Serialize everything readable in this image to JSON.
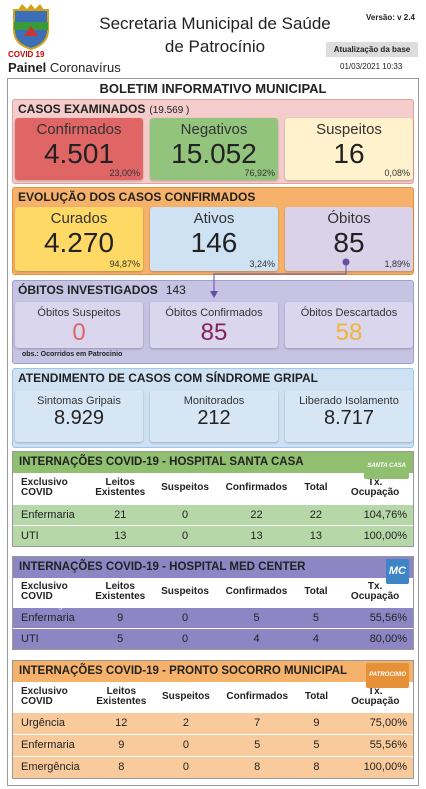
{
  "header": {
    "logo_label": "COVID 19",
    "title_line1": "Secretaria Municipal de Saúde",
    "title_line2": "de Patrocínio",
    "version": "Versão: v 2.4",
    "update_label": "Atualização da base",
    "update_date": "01/03/2021 10:33",
    "panel_bold": "Painel",
    "panel_rest": "Coronavírus"
  },
  "bulletin_title": "BOLETIM INFORMATIVO MUNICIPAL",
  "examined": {
    "title": "CASOS EXAMINADOS",
    "total": "(19.569  )",
    "cards": [
      {
        "label": "Confirmados",
        "value": "4.501",
        "percent": "23,00%"
      },
      {
        "label": "Negativos",
        "value": "15.052",
        "percent": "76,92%"
      },
      {
        "label": "Suspeitos",
        "value": "16",
        "percent": "0,08%"
      }
    ]
  },
  "evolution": {
    "title": "EVOLUÇÃO DOS CASOS CONFIRMADOS",
    "cards": [
      {
        "label": "Curados",
        "value": "4.270",
        "percent": "94,87%"
      },
      {
        "label": "Ativos",
        "value": "146",
        "percent": "3,24%"
      },
      {
        "label": "Óbitos",
        "value": "85",
        "percent": "1,89%"
      }
    ]
  },
  "deaths_investigated": {
    "title": "ÓBITOS INVESTIGADOS",
    "total": "143",
    "cards": [
      {
        "label": "Óbitos Suspeitos",
        "value": "0"
      },
      {
        "label": "Óbitos Confirmados",
        "value": "85"
      },
      {
        "label": "Óbitos Descartados",
        "value": "58"
      }
    ],
    "note": "obs.: Ocorridos em Patrocinio"
  },
  "flu_syndrome": {
    "title": "ATENDIMENTO DE CASOS COM SÍNDROME GRIPAL",
    "cards": [
      {
        "label": "Sintomas Gripais",
        "value": "8.929"
      },
      {
        "label": "Monitorados",
        "value": "212"
      },
      {
        "label": "Liberado Isolamento",
        "value": "8.717"
      }
    ]
  },
  "hospitals": [
    {
      "title": "INTERNAÇÕES COVID-19 - HOSPITAL SANTA CASA",
      "logo_text": "SANTA CASA",
      "columns": [
        [
          "Exclusivo",
          "COVID"
        ],
        [
          "Leitos",
          "Existentes"
        ],
        [
          "Suspeitos"
        ],
        [
          "Confirmados"
        ],
        [
          "Total"
        ],
        [
          "Tx.",
          "Ocupação"
        ]
      ],
      "rows": [
        [
          "Enfermaria",
          "21",
          "0",
          "22",
          "22",
          "104,76%"
        ],
        [
          "UTI",
          "13",
          "0",
          "13",
          "13",
          "100,00%"
        ]
      ]
    },
    {
      "title": "INTERNAÇÕES COVID-19 - HOSPITAL MED CENTER",
      "logo_text": "MC",
      "watermark": "Google Data Studio",
      "columns": [
        [
          "Exclusivo",
          "COVID"
        ],
        [
          "Leitos",
          "Existentes"
        ],
        [
          "Suspeitos"
        ],
        [
          "Confirmados"
        ],
        [
          "Total"
        ],
        [
          "Tx.",
          "Ocupação"
        ]
      ],
      "rows": [
        [
          "Enfermaria",
          "9",
          "0",
          "5",
          "5",
          "55,56%"
        ],
        [
          "UTI",
          "5",
          "0",
          "4",
          "4",
          "80,00%"
        ]
      ]
    },
    {
      "title": "INTERNAÇÕES COVID-19 - PRONTO SOCORRO MUNICIPAL",
      "logo_text": "PATROCINIO",
      "columns": [
        [
          "Exclusivo",
          "COVID"
        ],
        [
          "Leitos",
          "Existentes"
        ],
        [
          "Suspeitos"
        ],
        [
          "Confirmados"
        ],
        [
          "Total"
        ],
        [
          "Tx.",
          "Ocupação"
        ]
      ],
      "rows": [
        [
          "Urgência",
          "12",
          "2",
          "7",
          "9",
          "75,00%"
        ],
        [
          "Enfermaria",
          "9",
          "0",
          "5",
          "5",
          "55,56%"
        ],
        [
          "Emergência",
          "8",
          "0",
          "8",
          "8",
          "100,00%"
        ]
      ]
    }
  ]
}
